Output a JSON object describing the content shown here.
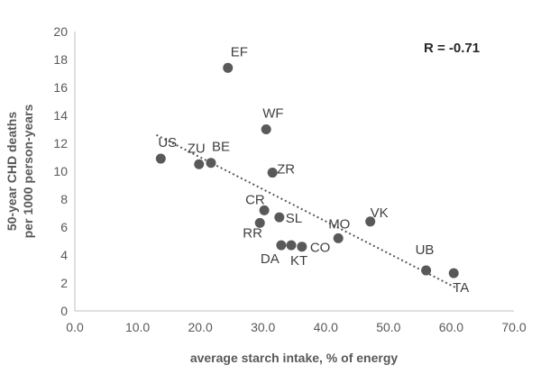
{
  "chart_data": {
    "type": "scatter",
    "title": "",
    "xlabel": "average starch intake, % of energy",
    "ylabel": [
      "50-year CHD deaths",
      "per 1000 person-years"
    ],
    "xlim": [
      0,
      70
    ],
    "ylim": [
      0,
      20
    ],
    "x_ticks": [
      "0.0",
      "10.0",
      "20.0",
      "30.0",
      "40.0",
      "50.0",
      "60.0",
      "70.0"
    ],
    "y_ticks": [
      "0",
      "2",
      "4",
      "6",
      "8",
      "10",
      "12",
      "14",
      "16",
      "18",
      "20"
    ],
    "annotation": "R = -0.71",
    "marker_color": "#595959",
    "trendline_color": "#595959",
    "grid": false,
    "points": [
      {
        "label": "US",
        "x": 13.7,
        "y": 10.9
      },
      {
        "label": "ZU",
        "x": 19.8,
        "y": 10.5
      },
      {
        "label": "BE",
        "x": 21.7,
        "y": 10.6
      },
      {
        "label": "EF",
        "x": 24.4,
        "y": 17.4
      },
      {
        "label": "WF",
        "x": 30.5,
        "y": 13.0
      },
      {
        "label": "ZR",
        "x": 31.5,
        "y": 9.9
      },
      {
        "label": "CR",
        "x": 30.2,
        "y": 7.2
      },
      {
        "label": "RR",
        "x": 29.5,
        "y": 6.3
      },
      {
        "label": "SL",
        "x": 32.6,
        "y": 6.7
      },
      {
        "label": "DA",
        "x": 32.9,
        "y": 4.7
      },
      {
        "label": "KT",
        "x": 34.5,
        "y": 4.7
      },
      {
        "label": "CO",
        "x": 36.2,
        "y": 4.6
      },
      {
        "label": "MO",
        "x": 42.0,
        "y": 5.2
      },
      {
        "label": "VK",
        "x": 47.1,
        "y": 6.4
      },
      {
        "label": "UB",
        "x": 56.0,
        "y": 2.9
      },
      {
        "label": "TA",
        "x": 60.4,
        "y": 2.7
      }
    ],
    "trendline": {
      "x": [
        13.0,
        61.0
      ],
      "y": [
        12.6,
        1.6
      ],
      "style": "dotted"
    }
  }
}
